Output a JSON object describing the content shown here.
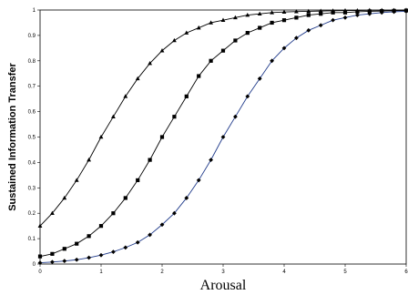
{
  "chart_data": {
    "type": "line",
    "title": "",
    "xlabel": "Arousal",
    "ylabel": "Sustained Information Transfer",
    "xlim": [
      0,
      6
    ],
    "ylim": [
      0,
      1
    ],
    "x_ticks": [
      "0",
      "1",
      "2",
      "3",
      "4",
      "5",
      "6"
    ],
    "y_ticks": [
      "0",
      "0.1",
      "0.2",
      "0.3",
      "0.4",
      "0.5",
      "0.6",
      "0.7",
      "0.8",
      "0.9",
      "1"
    ],
    "grid": false,
    "legend": "none",
    "x": [
      0,
      0.2,
      0.4,
      0.6,
      0.8,
      1.0,
      1.2,
      1.4,
      1.6,
      1.8,
      2.0,
      2.2,
      2.4,
      2.6,
      2.8,
      3.0,
      3.2,
      3.4,
      3.6,
      3.8,
      4.0,
      4.2,
      4.4,
      4.6,
      4.8,
      5.0,
      5.2,
      5.4,
      5.6,
      5.8,
      6.0
    ],
    "series": [
      {
        "marker": "triangle",
        "color": "#000000",
        "values": [
          0.15,
          0.2,
          0.26,
          0.33,
          0.41,
          0.5,
          0.58,
          0.66,
          0.73,
          0.79,
          0.84,
          0.88,
          0.91,
          0.93,
          0.95,
          0.96,
          0.97,
          0.98,
          0.985,
          0.99,
          0.992,
          0.994,
          0.995,
          0.996,
          0.997,
          0.998,
          0.998,
          0.999,
          0.999,
          0.999,
          1.0
        ]
      },
      {
        "marker": "square",
        "color": "#000000",
        "values": [
          0.03,
          0.04,
          0.06,
          0.08,
          0.11,
          0.15,
          0.2,
          0.26,
          0.33,
          0.41,
          0.5,
          0.58,
          0.66,
          0.74,
          0.8,
          0.84,
          0.88,
          0.91,
          0.93,
          0.95,
          0.96,
          0.97,
          0.98,
          0.985,
          0.99,
          0.99,
          0.993,
          0.995,
          0.996,
          0.997,
          0.998
        ]
      },
      {
        "marker": "diamond",
        "color": "#1f3a8a",
        "values": [
          0.005,
          0.008,
          0.012,
          0.017,
          0.025,
          0.035,
          0.048,
          0.065,
          0.085,
          0.115,
          0.155,
          0.2,
          0.26,
          0.33,
          0.41,
          0.5,
          0.58,
          0.66,
          0.73,
          0.8,
          0.85,
          0.89,
          0.92,
          0.94,
          0.96,
          0.97,
          0.98,
          0.985,
          0.99,
          0.993,
          0.995
        ]
      }
    ]
  }
}
